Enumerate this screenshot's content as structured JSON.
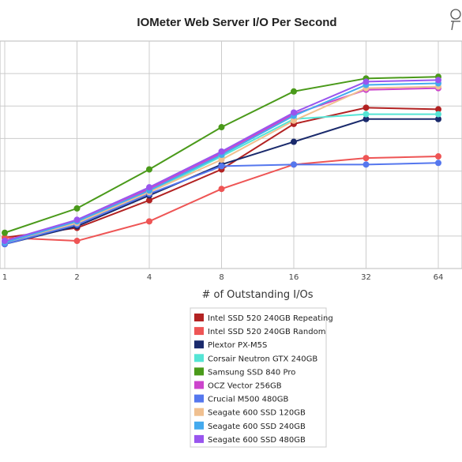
{
  "chart_data": {
    "type": "line",
    "title": "IOMeter Web Server I/O Per Second",
    "xlabel": "# of Outstanding I/Os",
    "ylabel": "",
    "x": [
      "1",
      "2",
      "4",
      "8",
      "16",
      "32",
      "64"
    ],
    "ylim": [
      0,
      7
    ],
    "grid": true,
    "legend_position": "bottom",
    "series": [
      {
        "name": "Intel SSD 520 240GB Repeating",
        "color": "#b22222",
        "values": [
          0.95,
          1.25,
          2.1,
          3.05,
          4.45,
          4.95,
          4.9
        ]
      },
      {
        "name": "Intel SSD 520 240GB Random",
        "color": "#ee5555",
        "values": [
          0.95,
          0.85,
          1.45,
          2.45,
          3.2,
          3.4,
          3.45
        ]
      },
      {
        "name": "Plextor PX-M5S",
        "color": "#1a2a6c",
        "values": [
          0.75,
          1.3,
          2.25,
          3.2,
          3.9,
          4.6,
          4.6
        ]
      },
      {
        "name": "Corsair Neutron GTX 240GB",
        "color": "#55e5d5",
        "values": [
          0.8,
          1.4,
          2.35,
          3.45,
          4.6,
          4.75,
          4.75
        ]
      },
      {
        "name": "Samsung SSD 840 Pro",
        "color": "#4a9a1a",
        "values": [
          1.1,
          1.85,
          3.05,
          4.35,
          5.45,
          5.85,
          5.9
        ]
      },
      {
        "name": "OCZ Vector 256GB",
        "color": "#cc44cc",
        "values": [
          0.85,
          1.45,
          2.45,
          3.55,
          4.75,
          5.5,
          5.55
        ]
      },
      {
        "name": "Crucial M500 480GB",
        "color": "#5577ee",
        "values": [
          0.75,
          1.35,
          2.3,
          3.15,
          3.2,
          3.2,
          3.25
        ]
      },
      {
        "name": "Seagate 600 SSD 120GB",
        "color": "#f0c090",
        "values": [
          0.8,
          1.4,
          2.35,
          3.35,
          4.55,
          5.55,
          5.6
        ]
      },
      {
        "name": "Seagate 600 SSD 240GB",
        "color": "#44aaee",
        "values": [
          0.8,
          1.45,
          2.4,
          3.5,
          4.7,
          5.65,
          5.7
        ]
      },
      {
        "name": "Seagate 600 SSD 480GB",
        "color": "#9955ee",
        "values": [
          0.85,
          1.5,
          2.5,
          3.6,
          4.8,
          5.75,
          5.8
        ]
      }
    ]
  }
}
